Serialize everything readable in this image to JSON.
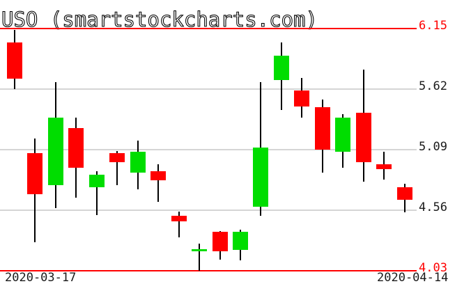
{
  "title": "USO (smartstockcharts.com)",
  "colors": {
    "up": "#00dd00",
    "down": "#ff0000",
    "grid": "#d5d5d5",
    "alert_line": "#ff0000",
    "alert_text": "#ff0000",
    "axis_text": "#1a1a1a",
    "wick": "#000000",
    "background": "#ffffff"
  },
  "chart_data": {
    "type": "candlestick",
    "title": "USO (smartstockcharts.com)",
    "ylim": [
      4.03,
      6.15
    ],
    "grid": true,
    "legend": "none",
    "y_ticks": [
      {
        "price": 6.15,
        "label": "6.15",
        "style": "alert"
      },
      {
        "price": 5.62,
        "label": "5.62",
        "style": "normal"
      },
      {
        "price": 5.09,
        "label": "5.09",
        "style": "normal"
      },
      {
        "price": 4.56,
        "label": "4.56",
        "style": "normal"
      },
      {
        "price": 4.03,
        "label": "4.03",
        "style": "alert"
      }
    ],
    "x_tick_labels": [
      "2020-03-17",
      "2020-04-14"
    ],
    "candles": [
      {
        "o": 6.03,
        "h": 6.14,
        "l": 5.62,
        "c": 5.71
      },
      {
        "o": 5.06,
        "h": 5.19,
        "l": 4.28,
        "c": 4.7
      },
      {
        "o": 4.78,
        "h": 5.68,
        "l": 4.58,
        "c": 5.37
      },
      {
        "o": 5.28,
        "h": 5.37,
        "l": 4.67,
        "c": 4.93
      },
      {
        "o": 4.76,
        "h": 4.9,
        "l": 4.52,
        "c": 4.87
      },
      {
        "o": 5.06,
        "h": 5.08,
        "l": 4.78,
        "c": 4.98
      },
      {
        "o": 4.89,
        "h": 5.17,
        "l": 4.74,
        "c": 5.07
      },
      {
        "o": 4.9,
        "h": 4.96,
        "l": 4.63,
        "c": 4.82
      },
      {
        "o": 4.51,
        "h": 4.55,
        "l": 4.32,
        "c": 4.46
      },
      {
        "o": 4.2,
        "h": 4.27,
        "l": 4.03,
        "c": 4.22
      },
      {
        "o": 4.37,
        "h": 4.38,
        "l": 4.13,
        "c": 4.2
      },
      {
        "o": 4.21,
        "h": 4.39,
        "l": 4.12,
        "c": 4.37
      },
      {
        "o": 4.59,
        "h": 5.68,
        "l": 4.51,
        "c": 5.11
      },
      {
        "o": 5.7,
        "h": 6.03,
        "l": 5.44,
        "c": 5.91
      },
      {
        "o": 5.61,
        "h": 5.72,
        "l": 5.37,
        "c": 5.47
      },
      {
        "o": 5.46,
        "h": 5.53,
        "l": 4.89,
        "c": 5.09
      },
      {
        "o": 5.07,
        "h": 5.4,
        "l": 4.93,
        "c": 5.37
      },
      {
        "o": 5.41,
        "h": 5.79,
        "l": 4.81,
        "c": 4.98
      },
      {
        "o": 4.96,
        "h": 5.07,
        "l": 4.83,
        "c": 4.92
      },
      {
        "o": 4.76,
        "h": 4.79,
        "l": 4.54,
        "c": 4.65
      }
    ]
  }
}
